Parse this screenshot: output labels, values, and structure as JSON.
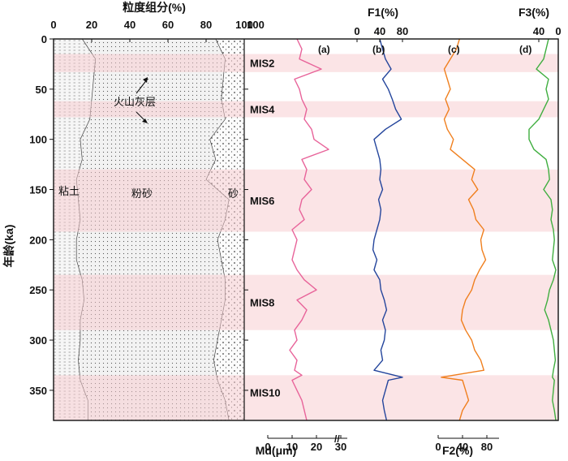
{
  "chart_data": {
    "type": "line",
    "y_axis": {
      "label": "年龄(ka)",
      "ylim": [
        0,
        380
      ],
      "ticks": [
        0,
        50,
        100,
        150,
        200,
        250,
        300,
        350
      ],
      "reversed": true
    },
    "mis_bands": [
      {
        "label": "MIS2",
        "start": 15,
        "end": 33
      },
      {
        "label": "MIS4",
        "start": 62,
        "end": 78
      },
      {
        "label": "MIS6",
        "start": 130,
        "end": 192
      },
      {
        "label": "MIS8",
        "start": 235,
        "end": 290
      },
      {
        "label": "MIS10",
        "start": 335,
        "end": 380
      }
    ],
    "grain_size_panel": {
      "title": "粒度组分(%)",
      "xlim": [
        0,
        100
      ],
      "ticks": [
        0,
        20,
        40,
        60,
        80,
        100
      ],
      "layers": [
        "粘土",
        "粉砂",
        "砂"
      ],
      "annotation": "火山灰层",
      "ages": [
        0,
        20,
        40,
        60,
        80,
        100,
        120,
        140,
        160,
        180,
        200,
        220,
        240,
        260,
        280,
        300,
        320,
        340,
        360,
        380
      ],
      "clay_upper": [
        15,
        22,
        21,
        20,
        19,
        14,
        15,
        12,
        13,
        14,
        12,
        12,
        15,
        16,
        14,
        14,
        13,
        14,
        18,
        18
      ],
      "silt_upper": [
        85,
        90,
        89,
        88,
        90,
        82,
        85,
        80,
        92,
        90,
        86,
        88,
        90,
        90,
        88,
        86,
        84,
        86,
        90,
        92
      ]
    },
    "series": [
      {
        "name": "Md(μm)",
        "label": "(a)",
        "color": "#e8649a",
        "axis_label": "Md(μm)",
        "xlim": [
          0,
          30
        ],
        "ticks": [
          0,
          10,
          20,
          30
        ],
        "ages": [
          0,
          10,
          20,
          30,
          40,
          50,
          60,
          70,
          80,
          90,
          100,
          110,
          120,
          130,
          140,
          150,
          160,
          170,
          180,
          190,
          200,
          210,
          220,
          230,
          240,
          250,
          260,
          270,
          280,
          290,
          300,
          310,
          320,
          330,
          335,
          340,
          350,
          360,
          370,
          380
        ],
        "values": [
          12,
          14,
          13,
          22,
          11,
          13,
          14,
          16,
          15,
          18,
          19,
          25,
          14,
          16,
          15,
          18,
          14,
          13,
          15,
          10,
          12,
          11,
          10,
          12,
          15,
          20,
          12,
          16,
          14,
          11,
          12,
          9,
          12,
          11,
          14,
          10,
          12,
          14,
          15,
          16
        ]
      },
      {
        "name": "F1(%)",
        "label": "(b)",
        "color": "#24459c",
        "axis_label": "F1(%)",
        "xlim": [
          0,
          100
        ],
        "ticks": [
          0,
          40,
          80
        ],
        "ages": [
          0,
          10,
          20,
          30,
          40,
          50,
          60,
          70,
          80,
          90,
          100,
          110,
          120,
          130,
          140,
          150,
          160,
          170,
          180,
          190,
          200,
          210,
          220,
          230,
          240,
          250,
          260,
          270,
          280,
          290,
          300,
          310,
          320,
          330,
          337,
          340,
          350,
          360,
          370,
          380
        ],
        "values": [
          40,
          45,
          50,
          60,
          45,
          55,
          62,
          68,
          78,
          50,
          30,
          35,
          40,
          42,
          40,
          45,
          38,
          42,
          40,
          35,
          30,
          28,
          35,
          30,
          40,
          42,
          48,
          52,
          45,
          50,
          48,
          42,
          45,
          30,
          80,
          55,
          50,
          45,
          48,
          52
        ]
      },
      {
        "name": "F2(%)",
        "label": "(c)",
        "color": "#f07f1e",
        "axis_label": "F2(%)",
        "xlim": [
          0,
          100
        ],
        "ticks": [
          0,
          40,
          80
        ],
        "ages": [
          0,
          10,
          20,
          30,
          40,
          50,
          60,
          70,
          80,
          90,
          100,
          110,
          120,
          130,
          140,
          150,
          160,
          170,
          180,
          190,
          200,
          210,
          220,
          230,
          240,
          250,
          260,
          270,
          280,
          290,
          300,
          310,
          320,
          330,
          337,
          340,
          350,
          360,
          370,
          380
        ],
        "values": [
          35,
          30,
          20,
          10,
          15,
          20,
          12,
          18,
          10,
          15,
          25,
          20,
          40,
          60,
          55,
          65,
          50,
          58,
          62,
          75,
          70,
          72,
          78,
          68,
          60,
          55,
          45,
          40,
          38,
          45,
          55,
          60,
          70,
          75,
          5,
          40,
          45,
          50,
          40,
          35
        ]
      },
      {
        "name": "F3(%)",
        "label": "(d)",
        "color": "#3fae3f",
        "axis_label": "F3(%)",
        "xlim": [
          0,
          80
        ],
        "ticks": [
          0,
          40
        ],
        "reversed": true,
        "ages": [
          0,
          10,
          20,
          30,
          40,
          50,
          60,
          70,
          80,
          90,
          100,
          110,
          120,
          130,
          140,
          150,
          160,
          170,
          180,
          190,
          200,
          210,
          220,
          230,
          240,
          250,
          260,
          270,
          280,
          290,
          300,
          310,
          320,
          330,
          337,
          340,
          350,
          360,
          370,
          380
        ],
        "values": [
          20,
          25,
          30,
          45,
          20,
          25,
          20,
          30,
          40,
          60,
          60,
          50,
          25,
          20,
          18,
          30,
          15,
          12,
          15,
          10,
          8,
          10,
          12,
          5,
          10,
          18,
          22,
          28,
          20,
          15,
          10,
          8,
          6,
          10,
          12,
          8,
          10,
          12,
          8,
          5
        ]
      }
    ]
  }
}
